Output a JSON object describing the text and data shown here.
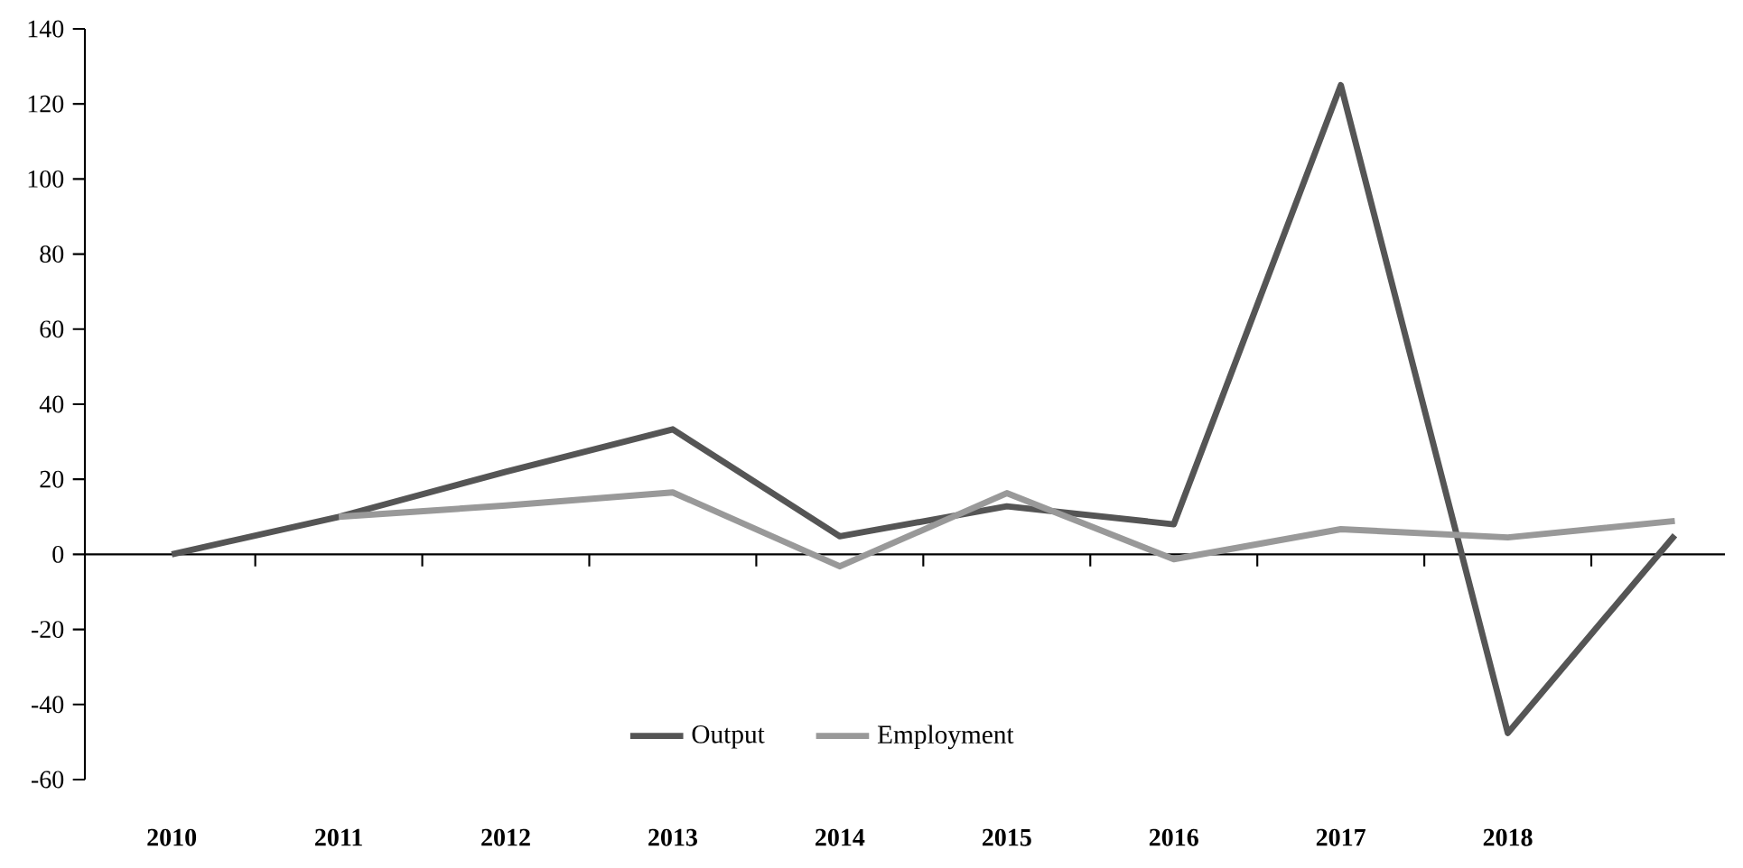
{
  "chart_data": {
    "type": "line",
    "categories": [
      "2010",
      "2011",
      "2012",
      "2013",
      "2014",
      "2015",
      "2016",
      "2017",
      "2018",
      null
    ],
    "series": [
      {
        "name": "Output",
        "color": "#555555",
        "values": [
          0,
          10,
          22,
          33.3,
          4.8,
          12.8,
          8,
          125,
          -47.6,
          5.1
        ]
      },
      {
        "name": "Employment",
        "color": "#999999",
        "values": [
          null,
          10,
          13,
          16.5,
          -3.2,
          16.3,
          -1.3,
          6.7,
          4.5,
          8.9
        ]
      }
    ],
    "ylim": [
      -60,
      140
    ],
    "yticks": [
      -60,
      -40,
      -20,
      0,
      20,
      40,
      60,
      80,
      100,
      120,
      140
    ],
    "legend": "bottom",
    "marker": "none",
    "line_style": "solid"
  }
}
